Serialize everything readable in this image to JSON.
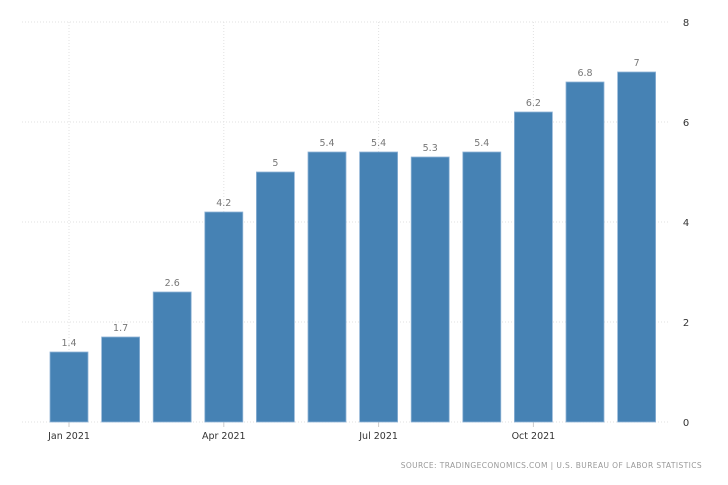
{
  "chart_data": {
    "type": "bar",
    "categories": [
      "Jan 2021",
      "Feb 2021",
      "Mar 2021",
      "Apr 2021",
      "May 2021",
      "Jun 2021",
      "Jul 2021",
      "Aug 2021",
      "Sep 2021",
      "Oct 2021",
      "Nov 2021",
      "Dec 2021"
    ],
    "values": [
      1.4,
      1.7,
      2.6,
      4.2,
      5,
      5.4,
      5.4,
      5.3,
      5.4,
      6.2,
      6.8,
      7
    ],
    "data_labels": [
      "1.4",
      "1.7",
      "2.6",
      "4.2",
      "5",
      "5.4",
      "5.4",
      "5.3",
      "5.4",
      "6.2",
      "6.8",
      "7"
    ],
    "x_tick_labels": [
      "Jan 2021",
      "Apr 2021",
      "Jul 2021",
      "Oct 2021"
    ],
    "y_ticks": [
      0,
      2,
      4,
      6,
      8
    ],
    "ylim": [
      0,
      8
    ],
    "y_axis_side": "right",
    "grid": true,
    "bar_color": "#4682b4",
    "title": "",
    "xlabel": "",
    "ylabel": ""
  },
  "source": "SOURCE: TRADINGECONOMICS.COM | U.S. BUREAU OF LABOR STATISTICS"
}
